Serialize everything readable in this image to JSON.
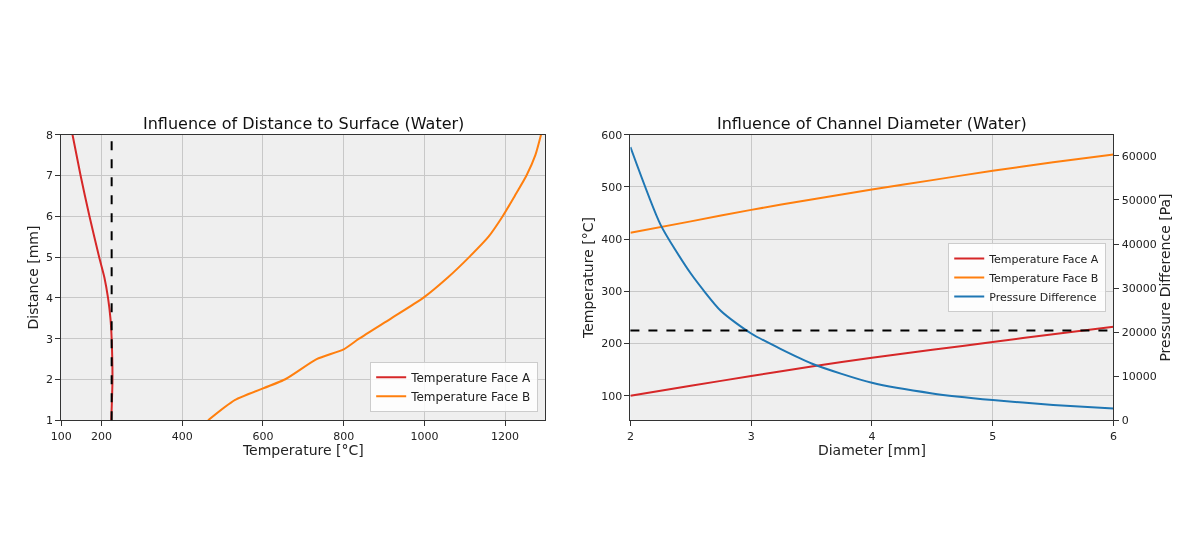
{
  "chart_data": [
    {
      "type": "line",
      "title": "Influence of Distance to Surface (Water)",
      "xlabel": "Temperature [°C]",
      "ylabel": "Distance [mm]",
      "xlim": [
        100,
        1300
      ],
      "xticks": [
        100,
        200,
        400,
        600,
        800,
        1000,
        1200
      ],
      "ylim": [
        1,
        8
      ],
      "yticks": [
        1,
        2,
        3,
        4,
        5,
        6,
        7,
        8
      ],
      "series": [
        {
          "name": "Temperature Face A",
          "color": "#d62728",
          "x": [
            224,
            227,
            225,
            222,
            216,
            207,
            194,
            170,
            148,
            128
          ],
          "values": [
            1,
            2,
            3,
            3.5,
            4,
            4.5,
            5,
            6,
            7,
            8
          ]
        },
        {
          "name": "Temperature Face B",
          "color": "#ff7f0e",
          "x": [
            464,
            531,
            654,
            733,
            800,
            838,
            918,
            997,
            1058,
            1111,
            1159,
            1194,
            1224,
            1253,
            1275,
            1289
          ],
          "values": [
            1,
            1.5,
            2,
            2.5,
            2.74,
            3,
            3.5,
            4,
            4.5,
            5,
            5.5,
            6,
            6.5,
            7,
            7.5,
            8
          ]
        }
      ],
      "ref_lines": [
        {
          "axis": "x",
          "value": 225,
          "color": "#000000",
          "line_style": "dashed"
        }
      ],
      "grid": true,
      "legend": "bottom right"
    },
    {
      "type": "line",
      "title": "Influence of Channel Diameter (Water)",
      "xlabel": "Diameter [mm]",
      "ylabel": "Temperature [°C]",
      "y2label": "Pressure Difference [Pa]",
      "xlim": [
        2,
        6
      ],
      "xticks": [
        2,
        3,
        4,
        5,
        6
      ],
      "ylim": [
        53,
        600
      ],
      "yticks": [
        100,
        200,
        300,
        400,
        500,
        600
      ],
      "y2lim": [
        0,
        64800
      ],
      "y2ticks": [
        0,
        10000,
        20000,
        30000,
        40000,
        50000,
        60000
      ],
      "series": [
        {
          "name": "Temperature Face A",
          "color": "#d62728",
          "x": [
            2,
            2.5,
            3,
            3.5,
            4,
            4.5,
            5,
            5.5,
            6
          ],
          "values": [
            100,
            119,
            138,
            156,
            173,
            188,
            203,
            218,
            232
          ]
        },
        {
          "name": "Temperature Face B",
          "color": "#ff7f0e",
          "x": [
            2,
            2.5,
            3,
            3.5,
            4,
            4.5,
            5,
            5.5,
            6
          ],
          "values": [
            412,
            434,
            456,
            476,
            495,
            513,
            531,
            547,
            562
          ]
        },
        {
          "name": "Pressure Difference",
          "color": "#1f77b4",
          "axis": "y2",
          "x": [
            2,
            2.25,
            2.5,
            2.75,
            3,
            3.5,
            4,
            4.5,
            5,
            5.5,
            6
          ],
          "values": [
            62000,
            44350,
            33300,
            24800,
            19700,
            12900,
            8500,
            6100,
            4600,
            3500,
            2700
          ]
        }
      ],
      "ref_lines": [
        {
          "axis": "y",
          "value": 225,
          "color": "#000000",
          "line_style": "dashed"
        }
      ],
      "grid": true,
      "legend": "right"
    }
  ]
}
